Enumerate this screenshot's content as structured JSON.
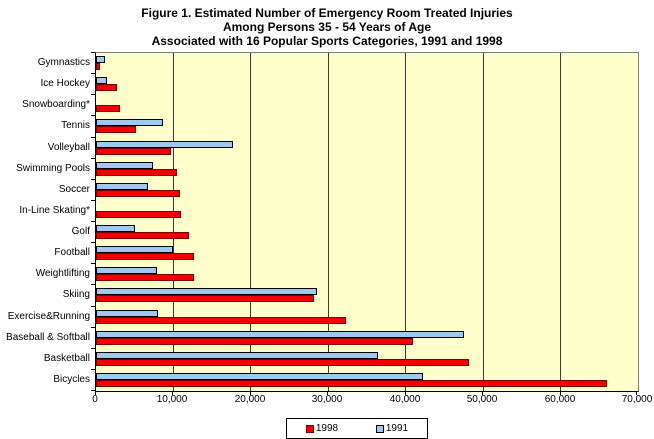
{
  "title": {
    "line1": "Figure 1. Estimated Number of Emergency Room Treated Injuries",
    "line2": "Among Persons 35 - 54 Years of Age",
    "line3": "Associated with 16 Popular Sports Categories, 1991 and 1998"
  },
  "chart_data": {
    "type": "bar",
    "orientation": "horizontal",
    "title": "Figure 1. Estimated Number of Emergency Room Treated Injuries Among Persons 35 - 54 Years of Age Associated with 16 Popular Sports Categories, 1991 and 1998",
    "categories": [
      "Gymnastics",
      "Ice Hockey",
      "Snowboarding*",
      "Tennis",
      "Volleyball",
      "Swimming Pools",
      "Soccer",
      "In-Line Skating*",
      "Golf",
      "Football",
      "Weightlifting",
      "Skiing",
      "Exercise&Running",
      "Baseball & Softball",
      "Basketball",
      "Bicycles"
    ],
    "series": [
      {
        "name": "1998",
        "color": "#F40000",
        "border_color": "#7A0000",
        "values": [
          500,
          2700,
          3100,
          5200,
          9700,
          10400,
          10900,
          11000,
          12000,
          12600,
          12700,
          28100,
          32300,
          40900,
          48200,
          66000
        ]
      },
      {
        "name": "1991",
        "color": "#9FC9F2",
        "border_color": "#000000",
        "values": [
          1200,
          1400,
          0,
          8600,
          17700,
          7300,
          6700,
          0,
          5100,
          10000,
          7900,
          28600,
          8000,
          47500,
          36400,
          42200
        ]
      }
    ],
    "xlabel": "",
    "ylabel": "",
    "xlim": [
      0,
      70000
    ],
    "x_tick_values": [
      0,
      10000,
      20000,
      30000,
      40000,
      50000,
      60000,
      70000
    ],
    "x_tick_labels": [
      "0",
      "10,000",
      "20,000",
      "30,000",
      "40,000",
      "50,000",
      "60,000",
      "70,000"
    ],
    "grid": true,
    "legend_position": "bottom",
    "plot_background": "#FFFFCC",
    "gridline_color": "#3a3a3a",
    "plot_border_color": "#808080",
    "axis_color": "#000000"
  }
}
